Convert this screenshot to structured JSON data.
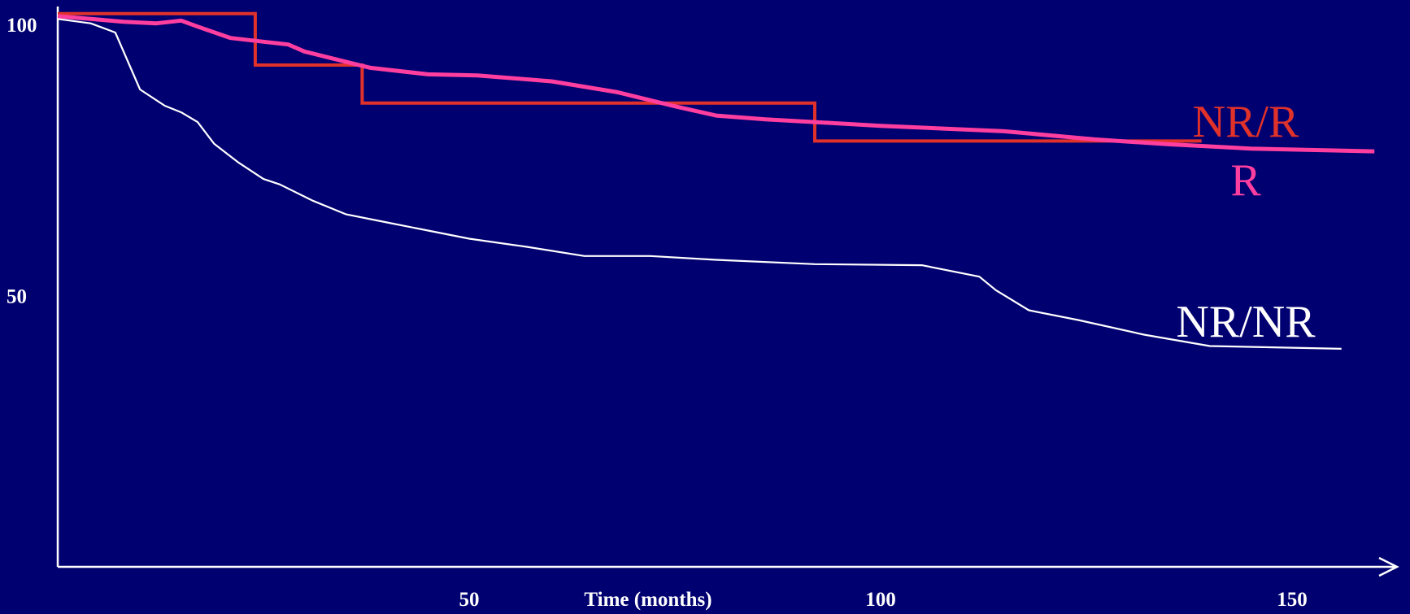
{
  "chart_data": {
    "type": "line",
    "title": "",
    "xlabel": "Time (months)",
    "ylabel": "",
    "xlim": [
      0,
      168
    ],
    "ylim": [
      0,
      102
    ],
    "x_ticks": [
      {
        "value": 50,
        "label": "50"
      },
      {
        "value": 100,
        "label": "100"
      },
      {
        "value": 150,
        "label": "150"
      }
    ],
    "y_ticks": [
      {
        "value": 100,
        "label": "100"
      },
      {
        "value": 50,
        "label": "50"
      }
    ],
    "grid": false,
    "background": "#010070",
    "axis_color": "#ffffff",
    "series": [
      {
        "name": "NR/R",
        "color": "#e0322a",
        "step": true,
        "points": [
          [
            0,
            102
          ],
          [
            24,
            102
          ],
          [
            24,
            92.5
          ],
          [
            37,
            92.5
          ],
          [
            37,
            85.5
          ],
          [
            92,
            85.5
          ],
          [
            92,
            78.5
          ],
          [
            139,
            78.5
          ]
        ]
      },
      {
        "name": "R",
        "color": "#ff3fa0",
        "step": false,
        "points": [
          [
            0,
            101.5
          ],
          [
            4,
            101
          ],
          [
            8,
            100.5
          ],
          [
            12,
            100.2
          ],
          [
            15,
            100.7
          ],
          [
            17,
            99.6
          ],
          [
            21,
            97.5
          ],
          [
            25,
            96.8
          ],
          [
            28,
            96.3
          ],
          [
            30,
            95
          ],
          [
            34,
            93.5
          ],
          [
            38,
            92
          ],
          [
            45,
            90.8
          ],
          [
            51,
            90.6
          ],
          [
            60,
            89.5
          ],
          [
            68,
            87.5
          ],
          [
            75,
            84.9
          ],
          [
            80,
            83.2
          ],
          [
            86,
            82.5
          ],
          [
            92,
            82
          ],
          [
            100,
            81.3
          ],
          [
            115,
            80.3
          ],
          [
            126,
            78.8
          ],
          [
            135,
            77.9
          ],
          [
            145,
            77.1
          ],
          [
            160,
            76.6
          ]
        ]
      },
      {
        "name": "NR/NR",
        "color": "#ffffff",
        "step": false,
        "points": [
          [
            0,
            101
          ],
          [
            4,
            100.2
          ],
          [
            7,
            98.5
          ],
          [
            10,
            88
          ],
          [
            13,
            85
          ],
          [
            15,
            83.8
          ],
          [
            17,
            82
          ],
          [
            19,
            78
          ],
          [
            22,
            74.5
          ],
          [
            25,
            71.5
          ],
          [
            27,
            70.5
          ],
          [
            31,
            67.5
          ],
          [
            35,
            65
          ],
          [
            40,
            63.5
          ],
          [
            45,
            62
          ],
          [
            50,
            60.5
          ],
          [
            57,
            59
          ],
          [
            64,
            57.3
          ],
          [
            72,
            57.3
          ],
          [
            80,
            56.6
          ],
          [
            92,
            55.8
          ],
          [
            105,
            55.6
          ],
          [
            112,
            53.5
          ],
          [
            114,
            51
          ],
          [
            118,
            47.3
          ],
          [
            124,
            45.5
          ],
          [
            132,
            42.8
          ],
          [
            140,
            40.7
          ],
          [
            156,
            40.2
          ]
        ]
      }
    ],
    "series_labels": [
      {
        "series": "NR/R",
        "text": "NR/R",
        "color": "#e0322a"
      },
      {
        "series": "R",
        "text": "R",
        "color": "#ff3fa0"
      },
      {
        "series": "NR/NR",
        "text": "NR/NR",
        "color": "#ffffff"
      }
    ]
  }
}
